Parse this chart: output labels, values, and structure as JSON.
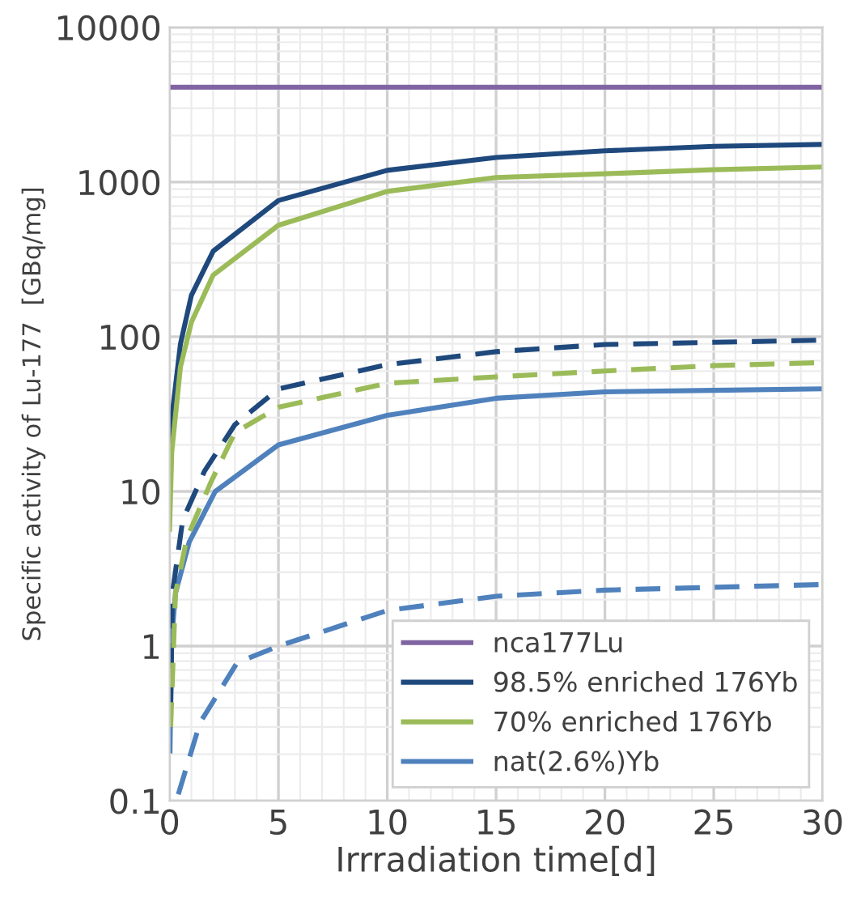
{
  "chart_data": {
    "type": "line",
    "xlabel": "Irrradiation time[d]",
    "ylabel": "Specific activity of Lu-177  [GBq/mg]",
    "log": "y",
    "xlim": [
      0,
      30
    ],
    "xticks": [
      0,
      5,
      10,
      15,
      20,
      25,
      30
    ],
    "ylim": [
      0.1,
      10000
    ],
    "yticks": [
      0.1,
      1,
      10,
      100,
      1000,
      10000
    ],
    "grid": true,
    "legend": "bottom right",
    "series": [
      {
        "name": "nca177Lu",
        "color": "#8064a2",
        "line_style": "solid",
        "x": [
          0,
          30
        ],
        "values": [
          4100,
          4100
        ]
      },
      {
        "name": "98.5% enriched 176Yb",
        "color": "#1f497d",
        "line_style": "solid",
        "x": [
          0,
          0.1,
          0.5,
          1,
          2,
          5,
          10,
          15,
          20,
          25,
          30
        ],
        "values": [
          10,
          30,
          90,
          185,
          357,
          760,
          1190,
          1440,
          1590,
          1700,
          1750
        ]
      },
      {
        "name": "70% enriched 176Yb",
        "color": "#9bbb59",
        "line_style": "solid",
        "x": [
          0,
          0.1,
          0.5,
          1,
          2,
          5,
          10,
          15,
          20,
          25,
          30
        ],
        "values": [
          5.7,
          18,
          64,
          124,
          250,
          525,
          870,
          1070,
          1130,
          1200,
          1250
        ]
      },
      {
        "name": "nat(2.6%)Yb",
        "color": "#4f81bd",
        "line_style": "solid",
        "x": [
          0.02,
          0.09,
          0.27,
          0.9,
          2.1,
          5,
          10,
          15,
          20,
          25,
          30
        ],
        "values": [
          0.21,
          1.07,
          2.2,
          4.7,
          10,
          20,
          31,
          40,
          44,
          45,
          46
        ]
      },
      {
        "color": "#1f497d",
        "line_style": "dashed",
        "x": [
          0.05,
          0.13,
          0.6,
          1.6,
          3,
          5,
          10,
          15,
          20,
          25,
          30
        ],
        "values": [
          0.4,
          2.2,
          6.5,
          13.5,
          27,
          46,
          66,
          80,
          89,
          92,
          95
        ]
      },
      {
        "color": "#9bbb59",
        "line_style": "dashed",
        "x": [
          0.05,
          0.27,
          0.8,
          1.9,
          3,
          5,
          10,
          15,
          20,
          25,
          30
        ],
        "values": [
          0.3,
          2.2,
          5,
          11.5,
          24,
          35,
          50,
          55,
          60,
          65,
          68
        ]
      },
      {
        "color": "#4f81bd",
        "line_style": "dashed",
        "x": [
          0.4,
          1.4,
          3.1,
          5,
          10,
          15,
          20,
          25,
          30
        ],
        "values": [
          0.11,
          0.32,
          0.78,
          1.0,
          1.7,
          2.1,
          2.3,
          2.4,
          2.5
        ]
      }
    ]
  }
}
